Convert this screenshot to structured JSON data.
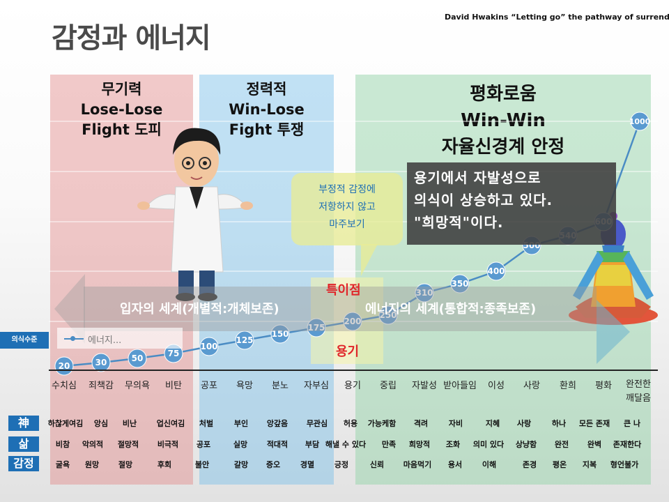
{
  "title": "감정과 에너지",
  "credit": "David Hwakins “Letting go” the pathway of surrender",
  "panels": {
    "left": {
      "line1": "무기력",
      "line2": "Lose-Lose",
      "line3": "Flight 도피"
    },
    "middle": {
      "line1": "정력적",
      "line2": "Win-Lose",
      "line3": "Fight 투쟁"
    },
    "right": {
      "line1": "평화로움",
      "line2": "Win-Win",
      "line3": "자율신경계 안정"
    }
  },
  "callout": {
    "line1": "용기에서 자발성으로",
    "line2": "의식이 상승하고 있다.",
    "line3": "\"희망적\"이다."
  },
  "bubble": {
    "line1": "부정적 감정에",
    "line2": "저항하지 않고",
    "line3": "마주보기"
  },
  "singular_point": "특이점",
  "courage": "용기",
  "world_left": "입자의 세계(개별적:개체보존)",
  "world_right": "에너지의 세계(통합적:종족보존)",
  "legend_label": "에너지...",
  "consciousness_label": "의식수준",
  "colors": {
    "line": "#4a8cc4",
    "marker": "#5a9ad0",
    "accent_red": "#e0262a",
    "label_blue": "#1e6fb5"
  },
  "chart_data": {
    "type": "line",
    "categories": [
      "수치심",
      "죄책감",
      "무의욕",
      "비탄",
      "공포",
      "욕망",
      "분노",
      "자부심",
      "용기",
      "중립",
      "자발성",
      "받아들임",
      "이성",
      "사랑",
      "환희",
      "평화",
      "완전한 깨달음"
    ],
    "series": [
      {
        "name": "에너지...",
        "values": [
          20,
          30,
          50,
          75,
          100,
          125,
          150,
          175,
          200,
          250,
          310,
          350,
          400,
          500,
          540,
          600,
          1000
        ]
      }
    ],
    "ylim": [
      0,
      1000
    ],
    "grid": true,
    "legend": "left"
  },
  "rows": {
    "labels": [
      "神",
      "삶",
      "감정"
    ],
    "god": [
      "하찮게여김",
      "앙심",
      "비난",
      "업신여김",
      "처벌",
      "부인",
      "앙갚음",
      "무관심",
      "허용",
      "가능케함",
      "격려",
      "자비",
      "지혜",
      "사랑",
      "하나",
      "모든 존재",
      "큰 나"
    ],
    "life": [
      "비참",
      "악의적",
      "절망적",
      "비극적",
      "공포",
      "실망",
      "적대적",
      "부담",
      "해낼 수 있다",
      "만족",
      "희망적",
      "조화",
      "의미 있다",
      "상냥함",
      "완전",
      "완벽",
      "존재한다"
    ],
    "emotion": [
      "굴욕",
      "원망",
      "절망",
      "후회",
      "불안",
      "갈망",
      "증오",
      "경멸",
      "긍정",
      "신뢰",
      "마음먹기",
      "용서",
      "이해",
      "존경",
      "평온",
      "지복",
      "형언불가"
    ]
  }
}
